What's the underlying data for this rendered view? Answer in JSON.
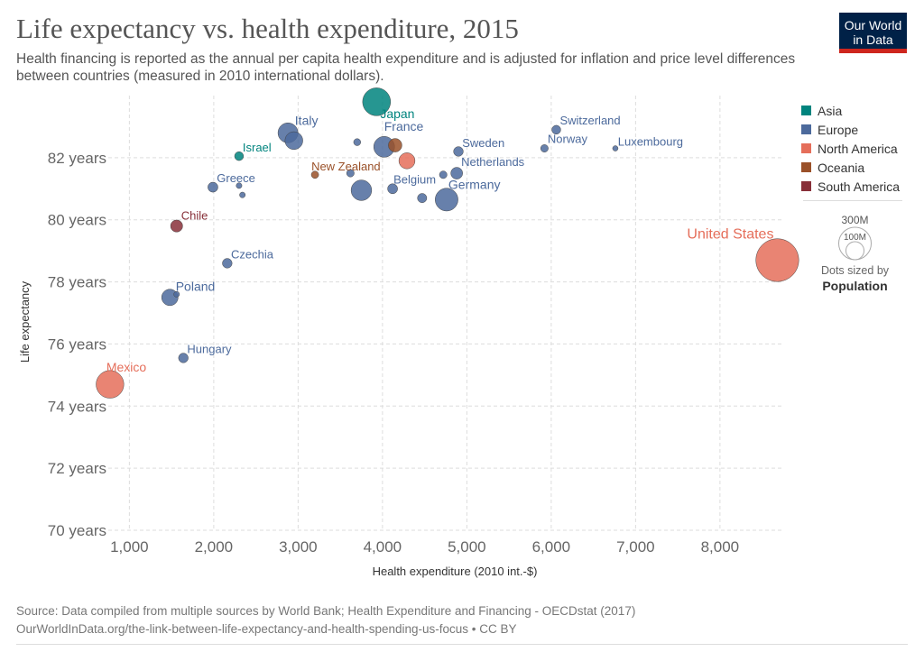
{
  "header": {
    "title": "Life expectancy vs. health expenditure, 2015",
    "subtitle": "Health financing is reported as the annual per capita health expenditure and is adjusted for inflation and price level differences between countries (measured in 2010 international dollars).",
    "logo_line1": "Our World",
    "logo_line2": "in Data"
  },
  "legend": {
    "items": [
      {
        "label": "Asia",
        "color": "#00847e"
      },
      {
        "label": "Europe",
        "color": "#4c6a9c"
      },
      {
        "label": "North America",
        "color": "#e56e5a"
      },
      {
        "label": "Oceania",
        "color": "#9a5129"
      },
      {
        "label": "South America",
        "color": "#883039"
      }
    ],
    "size_big": "300M",
    "size_small": "100M",
    "size_caption": "Dots sized by",
    "size_var": "Population"
  },
  "footer": {
    "source": "Source: Data compiled from multiple sources by World Bank; Health Expenditure and Financing - OECDstat (2017)",
    "url": "OurWorldInData.org/the-link-between-life-expectancy-and-health-spending-us-focus • CC BY"
  },
  "chart_data": {
    "type": "scatter",
    "title": "Life expectancy vs. health expenditure, 2015",
    "xlabel": "Health expenditure (2010 int.-$)",
    "ylabel": "Life expectancy",
    "xlim": [
      750,
      8750
    ],
    "ylim": [
      70,
      84
    ],
    "x_ticks": [
      1000,
      2000,
      3000,
      4000,
      5000,
      6000,
      7000,
      8000
    ],
    "x_tick_labels": [
      "1,000",
      "2,000",
      "3,000",
      "4,000",
      "5,000",
      "6,000",
      "7,000",
      "8,000"
    ],
    "y_ticks": [
      70,
      72,
      74,
      76,
      78,
      80,
      82
    ],
    "y_tick_labels": [
      "70 years",
      "72 years",
      "74 years",
      "76 years",
      "78 years",
      "80 years",
      "82 years"
    ],
    "grid": true,
    "legend_position": "right",
    "size_variable": "Population",
    "points": [
      {
        "label": "Japan",
        "continent": "Asia",
        "x": 3930,
        "y": 83.8,
        "pop": 127
      },
      {
        "label": "Israel",
        "continent": "Asia",
        "x": 2300,
        "y": 82.05,
        "pop": 8
      },
      {
        "label": "Italy",
        "continent": "Europe",
        "x": 2880,
        "y": 82.8,
        "pop": 60
      },
      {
        "label": "",
        "continent": "Europe",
        "x": 2950,
        "y": 82.55,
        "pop": 46
      },
      {
        "label": "",
        "continent": "Europe",
        "x": 3700,
        "y": 82.5,
        "pop": 4
      },
      {
        "label": "France",
        "continent": "Europe",
        "x": 4020,
        "y": 82.35,
        "pop": 66
      },
      {
        "label": "Switzerland",
        "continent": "Europe",
        "x": 6060,
        "y": 82.9,
        "pop": 8
      },
      {
        "label": "Norway",
        "continent": "Europe",
        "x": 5920,
        "y": 82.3,
        "pop": 5
      },
      {
        "label": "Luxembourg",
        "continent": "Europe",
        "x": 6760,
        "y": 82.3,
        "pop": 0.6
      },
      {
        "label": "Sweden",
        "continent": "Europe",
        "x": 4900,
        "y": 82.2,
        "pop": 10
      },
      {
        "label": "Netherlands",
        "continent": "Europe",
        "x": 4880,
        "y": 81.5,
        "pop": 17
      },
      {
        "label": "",
        "continent": "Europe",
        "x": 4720,
        "y": 81.45,
        "pop": 5
      },
      {
        "label": "Belgium",
        "continent": "Europe",
        "x": 4120,
        "y": 81.0,
        "pop": 11
      },
      {
        "label": "",
        "continent": "Europe",
        "x": 3750,
        "y": 80.95,
        "pop": 64
      },
      {
        "label": "",
        "continent": "Europe",
        "x": 3620,
        "y": 81.5,
        "pop": 5
      },
      {
        "label": "Germany",
        "continent": "Europe",
        "x": 4760,
        "y": 80.65,
        "pop": 81
      },
      {
        "label": "",
        "continent": "Europe",
        "x": 4470,
        "y": 80.7,
        "pop": 9
      },
      {
        "label": "Greece",
        "continent": "Europe",
        "x": 1990,
        "y": 81.05,
        "pop": 11
      },
      {
        "label": "",
        "continent": "Europe",
        "x": 2300,
        "y": 81.1,
        "pop": 2
      },
      {
        "label": "",
        "continent": "Europe",
        "x": 2340,
        "y": 80.8,
        "pop": 2
      },
      {
        "label": "Czechia",
        "continent": "Europe",
        "x": 2160,
        "y": 78.6,
        "pop": 10
      },
      {
        "label": "Poland",
        "continent": "Europe",
        "x": 1480,
        "y": 77.5,
        "pop": 38
      },
      {
        "label": "",
        "continent": "Europe",
        "x": 1560,
        "y": 77.6,
        "pop": 2
      },
      {
        "label": "Hungary",
        "continent": "Europe",
        "x": 1640,
        "y": 75.55,
        "pop": 10
      },
      {
        "label": "United States",
        "continent": "North America",
        "x": 8680,
        "y": 78.7,
        "pop": 321
      },
      {
        "label": "Mexico",
        "continent": "North America",
        "x": 770,
        "y": 74.7,
        "pop": 125
      },
      {
        "label": "",
        "continent": "North America",
        "x": 4290,
        "y": 81.9,
        "pop": 36
      },
      {
        "label": "New Zealand",
        "continent": "Oceania",
        "x": 3200,
        "y": 81.45,
        "pop": 4.6
      },
      {
        "label": "",
        "continent": "Oceania",
        "x": 4150,
        "y": 82.4,
        "pop": 24
      },
      {
        "label": "Chile",
        "continent": "South America",
        "x": 1560,
        "y": 79.8,
        "pop": 18
      }
    ]
  }
}
